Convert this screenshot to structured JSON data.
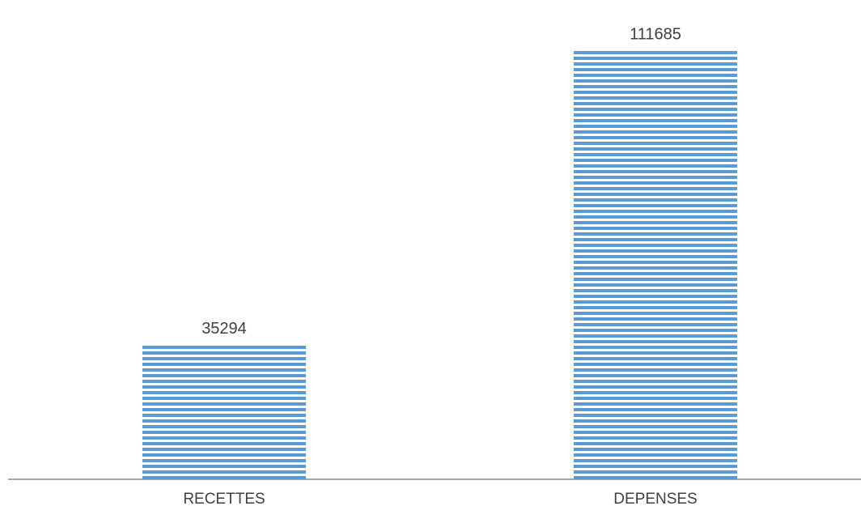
{
  "chart_data": {
    "type": "bar",
    "categories": [
      "RECETTES",
      "DEPENSES"
    ],
    "values": [
      35294,
      111685
    ],
    "data_labels": [
      "35294",
      "111685"
    ],
    "title": "",
    "xlabel": "",
    "ylabel": "",
    "ylim": [
      0,
      120000
    ],
    "grid": false,
    "legend": "none",
    "colors": {
      "bar_fill": "#ffffff",
      "bar_stripe": "#5b9bd5",
      "axis": "#8c8c8c",
      "text": "#404040"
    },
    "bar_pattern": "horizontal-stripes"
  }
}
